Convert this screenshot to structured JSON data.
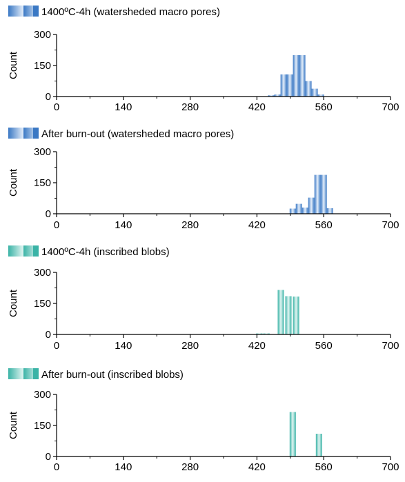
{
  "colors": {
    "blue_dark": "#3a78c4",
    "blue_light": "#e4eefa",
    "teal_dark": "#3ab3a6",
    "teal_light": "#e2f5f2",
    "axis": "#000000"
  },
  "chart_data": [
    {
      "type": "bar",
      "title": "1400ºC-4h (watersheded macro pores)",
      "palette": "blue",
      "xlabel": "",
      "ylabel": "Count",
      "xlim": [
        0,
        700
      ],
      "ylim": [
        0,
        300
      ],
      "xticks": [
        0,
        140,
        280,
        420,
        560,
        700
      ],
      "yticks": [
        0,
        150,
        300
      ],
      "x": [
        450,
        463,
        476,
        489,
        502,
        515,
        528,
        541,
        554
      ],
      "values": [
        6,
        10,
        107,
        107,
        200,
        200,
        75,
        38,
        10
      ]
    },
    {
      "type": "bar",
      "title": "After burn-out (watersheded macro pores)",
      "palette": "blue",
      "xlabel": "",
      "ylabel": "Count",
      "xlim": [
        0,
        700
      ],
      "ylim": [
        0,
        300
      ],
      "xticks": [
        0,
        140,
        280,
        420,
        560,
        700
      ],
      "yticks": [
        0,
        150,
        300
      ],
      "x": [
        495,
        508,
        521,
        534,
        547,
        560,
        573
      ],
      "values": [
        25,
        48,
        30,
        78,
        188,
        188,
        27
      ]
    },
    {
      "type": "bar",
      "title": "1400ºC-4h (inscribed blobs)",
      "palette": "teal",
      "xlabel": "",
      "ylabel": "Count",
      "xlim": [
        0,
        700
      ],
      "ylim": [
        0,
        300
      ],
      "xticks": [
        0,
        140,
        280,
        420,
        560,
        700
      ],
      "yticks": [
        0,
        150,
        300
      ],
      "x": [
        425,
        440,
        470,
        486,
        502
      ],
      "values": [
        5,
        5,
        215,
        185,
        183
      ]
    },
    {
      "type": "bar",
      "title": "After burn-out (inscribed blobs)",
      "palette": "teal",
      "xlabel": "",
      "ylabel": "Count",
      "xlim": [
        0,
        700
      ],
      "ylim": [
        0,
        300
      ],
      "xticks": [
        0,
        140,
        280,
        420,
        560,
        700
      ],
      "yticks": [
        0,
        150,
        300
      ],
      "x": [
        495,
        550
      ],
      "values": [
        215,
        110
      ]
    }
  ]
}
